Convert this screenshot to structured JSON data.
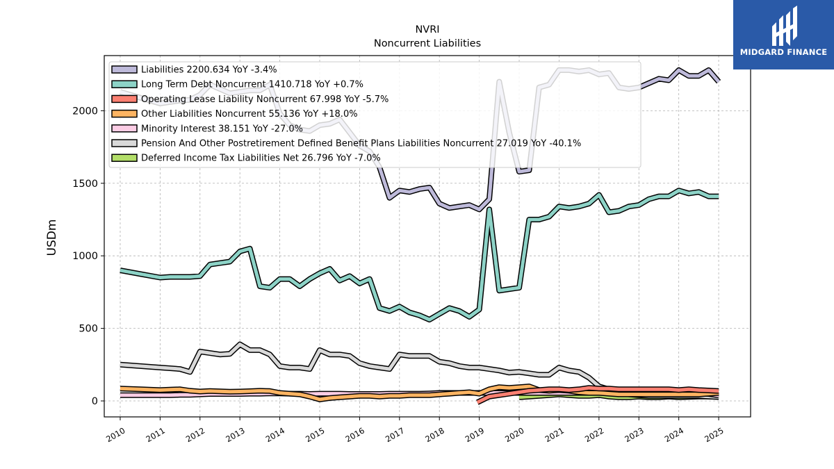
{
  "brand": {
    "name": "MIDGARD FINANCE",
    "logo_icon": "midgard-logo-icon",
    "bg_color": "#2a5aa8"
  },
  "chart_data": {
    "type": "line",
    "title": "NVRI",
    "subtitle": "Noncurrent  Liabilities",
    "xlabel": "",
    "ylabel": "USDm",
    "xlim": [
      2009.6,
      2025.8
    ],
    "ylim": [
      -110,
      2380
    ],
    "yticks": [
      0,
      500,
      1000,
      1500,
      2000
    ],
    "xticks": [
      2010,
      2011,
      2012,
      2013,
      2014,
      2015,
      2016,
      2017,
      2018,
      2019,
      2020,
      2021,
      2022,
      2023,
      2024,
      2025
    ],
    "grid": true,
    "legend_position": "top-left",
    "series": [
      {
        "name": "Liabilities  2200.634 YoY -3.4%",
        "color": "#bebada",
        "x": [
          2010.0,
          2010.5,
          2011.0,
          2011.25,
          2011.5,
          2011.75,
          2012.0,
          2012.25,
          2012.5,
          2012.75,
          2013.0,
          2013.25,
          2013.5,
          2013.75,
          2014.0,
          2014.25,
          2014.5,
          2014.75,
          2015.0,
          2015.25,
          2015.5,
          2015.75,
          2016.0,
          2016.25,
          2016.5,
          2016.75,
          2017.0,
          2017.25,
          2017.5,
          2017.75,
          2018.0,
          2018.25,
          2018.5,
          2018.75,
          2019.0,
          2019.25,
          2019.5,
          2019.75,
          2020.0,
          2020.25,
          2020.5,
          2020.75,
          2021.0,
          2021.25,
          2021.5,
          2021.75,
          2022.0,
          2022.25,
          2022.5,
          2022.75,
          2023.0,
          2023.25,
          2023.5,
          2023.75,
          2024.0,
          2024.25,
          2024.5,
          2024.75,
          2025.0
        ],
        "y": [
          2130,
          2090,
          2050,
          2060,
          2070,
          2075,
          2110,
          2180,
          2150,
          2120,
          2130,
          2140,
          2140,
          2180,
          1980,
          1900,
          1870,
          1860,
          1900,
          1910,
          1940,
          1850,
          1760,
          1720,
          1610,
          1400,
          1450,
          1440,
          1460,
          1470,
          1360,
          1330,
          1340,
          1350,
          1320,
          1390,
          2200,
          1850,
          1580,
          1590,
          2160,
          2180,
          2280,
          2280,
          2270,
          2280,
          2250,
          2260,
          2160,
          2150,
          2160,
          2190,
          2220,
          2210,
          2280,
          2240,
          2240,
          2280,
          2200
        ]
      },
      {
        "name": "Long Term Debt Noncurrent  1410.718 YoY +0.7%",
        "color": "#8dd3c7",
        "x": [
          2010.0,
          2010.5,
          2011.0,
          2011.25,
          2011.5,
          2011.75,
          2012.0,
          2012.25,
          2012.5,
          2012.75,
          2013.0,
          2013.25,
          2013.5,
          2013.75,
          2014.0,
          2014.25,
          2014.5,
          2014.75,
          2015.0,
          2015.25,
          2015.5,
          2015.75,
          2016.0,
          2016.25,
          2016.5,
          2016.75,
          2017.0,
          2017.25,
          2017.5,
          2017.75,
          2018.0,
          2018.25,
          2018.5,
          2018.75,
          2019.0,
          2019.25,
          2019.5,
          2019.75,
          2020.0,
          2020.25,
          2020.5,
          2020.75,
          2021.0,
          2021.25,
          2021.5,
          2021.75,
          2022.0,
          2022.25,
          2022.5,
          2022.75,
          2023.0,
          2023.25,
          2023.5,
          2023.75,
          2024.0,
          2024.25,
          2024.5,
          2024.75,
          2025.0
        ],
        "y": [
          900,
          875,
          850,
          855,
          855,
          855,
          860,
          940,
          950,
          960,
          1030,
          1050,
          790,
          780,
          840,
          840,
          790,
          840,
          880,
          910,
          830,
          860,
          810,
          840,
          640,
          620,
          650,
          610,
          590,
          560,
          600,
          640,
          620,
          580,
          630,
          1320,
          760,
          770,
          780,
          1250,
          1250,
          1270,
          1340,
          1330,
          1340,
          1360,
          1420,
          1300,
          1310,
          1340,
          1350,
          1390,
          1410,
          1410,
          1450,
          1430,
          1440,
          1410,
          1410
        ]
      },
      {
        "name": "Operating Lease Liability Noncurrent  67.998 YoY -5.7%",
        "color": "#fb8072",
        "x": [
          2018.95,
          2019.25,
          2019.5,
          2019.75,
          2020.0,
          2020.25,
          2020.5,
          2020.75,
          2021.0,
          2021.25,
          2021.5,
          2021.75,
          2022.0,
          2022.25,
          2022.5,
          2022.75,
          2023.0,
          2023.25,
          2023.5,
          2023.75,
          2024.0,
          2024.25,
          2024.5,
          2024.75,
          2025.0
        ],
        "y": [
          -10,
          30,
          40,
          50,
          60,
          70,
          75,
          80,
          80,
          75,
          80,
          90,
          85,
          85,
          80,
          80,
          80,
          80,
          80,
          80,
          75,
          80,
          75,
          72,
          68
        ]
      },
      {
        "name": "Other Liabilities Noncurrent  55.136 YoY +18.0%",
        "color": "#fdb462",
        "x": [
          2010.0,
          2010.5,
          2011.0,
          2011.25,
          2011.5,
          2011.75,
          2012.0,
          2012.25,
          2012.5,
          2012.75,
          2013.0,
          2013.25,
          2013.5,
          2013.75,
          2014.0,
          2014.25,
          2014.5,
          2014.75,
          2015.0,
          2015.25,
          2015.5,
          2015.75,
          2016.0,
          2016.25,
          2016.5,
          2016.75,
          2017.0,
          2017.25,
          2017.5,
          2017.75,
          2018.0,
          2018.25,
          2018.5,
          2018.75,
          2019.0,
          2019.25,
          2019.5,
          2019.75,
          2020.0,
          2020.25,
          2020.5,
          2020.75,
          2021.0,
          2021.25,
          2021.5,
          2021.75,
          2022.0,
          2022.25,
          2022.5,
          2022.75,
          2023.0,
          2023.25,
          2023.5,
          2023.75,
          2024.0,
          2024.25,
          2024.5,
          2024.75,
          2025.0
        ],
        "y": [
          85,
          80,
          75,
          78,
          80,
          70,
          65,
          68,
          66,
          64,
          65,
          67,
          70,
          68,
          55,
          50,
          45,
          30,
          10,
          20,
          25,
          30,
          35,
          35,
          30,
          35,
          35,
          40,
          40,
          40,
          45,
          50,
          55,
          60,
          50,
          80,
          95,
          90,
          95,
          100,
          75,
          70,
          75,
          70,
          60,
          55,
          55,
          50,
          45,
          45,
          45,
          45,
          45,
          45,
          45,
          45,
          45,
          50,
          55
        ]
      },
      {
        "name": "Minority Interest  38.151 YoY -27.0%",
        "color": "#fccde5",
        "x": [
          2010.0,
          2010.5,
          2011.0,
          2011.25,
          2011.5,
          2011.75,
          2012.0,
          2012.25,
          2012.5,
          2012.75,
          2013.0,
          2013.25,
          2013.5,
          2013.75,
          2014.0,
          2014.25,
          2014.5,
          2014.75,
          2015.0,
          2015.25,
          2015.5,
          2015.75,
          2016.0,
          2016.25,
          2016.5,
          2016.75,
          2017.0,
          2017.25,
          2017.5,
          2017.75,
          2018.0,
          2018.25,
          2018.5,
          2018.75,
          2019.0,
          2019.25,
          2019.5,
          2019.75,
          2020.0,
          2020.25,
          2020.5,
          2020.75,
          2021.0,
          2021.25,
          2021.5,
          2021.75,
          2022.0,
          2022.25,
          2022.5,
          2022.75,
          2023.0,
          2023.25,
          2023.5,
          2023.75,
          2024.0,
          2024.25,
          2024.5,
          2024.75,
          2025.0
        ],
        "y": [
          40,
          40,
          40,
          40,
          42,
          42,
          45,
          48,
          48,
          48,
          48,
          50,
          50,
          52,
          52,
          50,
          50,
          48,
          50,
          50,
          50,
          48,
          48,
          48,
          48,
          50,
          50,
          50,
          50,
          52,
          55,
          55,
          55,
          55,
          55,
          55,
          55,
          55,
          55,
          55,
          55,
          55,
          55,
          55,
          55,
          55,
          55,
          55,
          55,
          55,
          55,
          55,
          52,
          52,
          52,
          52,
          50,
          48,
          38
        ]
      },
      {
        "name": "Pension And Other Postretirement Defined Benefit Plans Liabilities Noncurrent  27.019 YoY -40.1%",
        "color": "#d9d9d9",
        "x": [
          2010.0,
          2010.5,
          2011.0,
          2011.25,
          2011.5,
          2011.75,
          2012.0,
          2012.25,
          2012.5,
          2012.75,
          2013.0,
          2013.25,
          2013.5,
          2013.75,
          2014.0,
          2014.25,
          2014.5,
          2014.75,
          2015.0,
          2015.25,
          2015.5,
          2015.75,
          2016.0,
          2016.25,
          2016.5,
          2016.75,
          2017.0,
          2017.25,
          2017.5,
          2017.75,
          2018.0,
          2018.25,
          2018.5,
          2018.75,
          2019.0,
          2019.25,
          2019.5,
          2019.75,
          2020.0,
          2020.25,
          2020.5,
          2020.75,
          2021.0,
          2021.25,
          2021.5,
          2021.75,
          2022.0,
          2022.25,
          2022.5,
          2022.75,
          2023.0,
          2023.25,
          2023.5,
          2023.75,
          2024.0,
          2024.25,
          2024.5,
          2024.75,
          2025.0
        ],
        "y": [
          250,
          240,
          230,
          225,
          220,
          200,
          340,
          330,
          320,
          325,
          390,
          350,
          350,
          320,
          240,
          230,
          230,
          220,
          350,
          320,
          320,
          310,
          260,
          240,
          230,
          220,
          320,
          310,
          310,
          310,
          270,
          260,
          240,
          230,
          230,
          220,
          210,
          195,
          200,
          190,
          180,
          180,
          230,
          210,
          200,
          160,
          100,
          80,
          60,
          45,
          40,
          35,
          35,
          35,
          35,
          35,
          35,
          30,
          27
        ]
      },
      {
        "name": "Deferred Income Tax Liabilities Net  26.796 YoY -7.0%",
        "color": "#b3de69",
        "x": [
          2020.0,
          2020.25,
          2020.5,
          2020.75,
          2021.0,
          2021.25,
          2021.5,
          2021.75,
          2022.0,
          2022.25,
          2022.5,
          2022.75,
          2023.0,
          2023.25,
          2023.5,
          2023.75,
          2024.0,
          2024.25,
          2024.5,
          2024.75,
          2025.0
        ],
        "y": [
          25,
          30,
          35,
          40,
          45,
          40,
          35,
          35,
          40,
          30,
          25,
          25,
          30,
          25,
          25,
          30,
          25,
          28,
          30,
          30,
          27
        ]
      }
    ]
  }
}
